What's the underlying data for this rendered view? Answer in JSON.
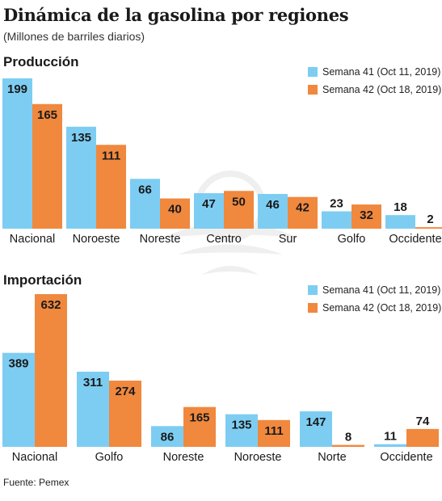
{
  "header": {
    "title": "Dinámica de la gasolina por regiones",
    "subtitle": "(Millones de barriles diarios)"
  },
  "colors": {
    "semana41": "#7dcdf2",
    "semana42": "#f0883e",
    "text": "#1a1a1a"
  },
  "legend": {
    "semana41": "Semana 41 (Oct 11, 2019)",
    "semana42": "Semana 42 (Oct 18, 2019)"
  },
  "source": "Fuente: Pemex",
  "chart_data": [
    {
      "type": "bar",
      "title": "Producción",
      "categories": [
        "Nacional",
        "Noroeste",
        "Noreste",
        "Centro",
        "Sur",
        "Golfo",
        "Occidente"
      ],
      "series": [
        {
          "name": "Semana 41 (Oct 11, 2019)",
          "values": [
            199,
            135,
            66,
            47,
            46,
            23,
            18
          ]
        },
        {
          "name": "Semana 42 (Oct 18, 2019)",
          "values": [
            165,
            111,
            40,
            50,
            42,
            32,
            2
          ]
        }
      ],
      "xlabel": "",
      "ylabel": "",
      "ylim": [
        0,
        199
      ],
      "grid": false,
      "legend_position": "top-right"
    },
    {
      "type": "bar",
      "title": "Importación",
      "categories": [
        "Nacional",
        "Golfo",
        "Noreste",
        "Noroeste",
        "Norte",
        "Occidente"
      ],
      "series": [
        {
          "name": "Semana 41 (Oct 11, 2019)",
          "values": [
            389,
            311,
            86,
            135,
            147,
            11
          ]
        },
        {
          "name": "Semana 42 (Oct 18, 2019)",
          "values": [
            632,
            274,
            165,
            111,
            8,
            74
          ]
        }
      ],
      "xlabel": "",
      "ylabel": "",
      "ylim": [
        0,
        632
      ],
      "grid": false,
      "legend_position": "top-right"
    }
  ]
}
